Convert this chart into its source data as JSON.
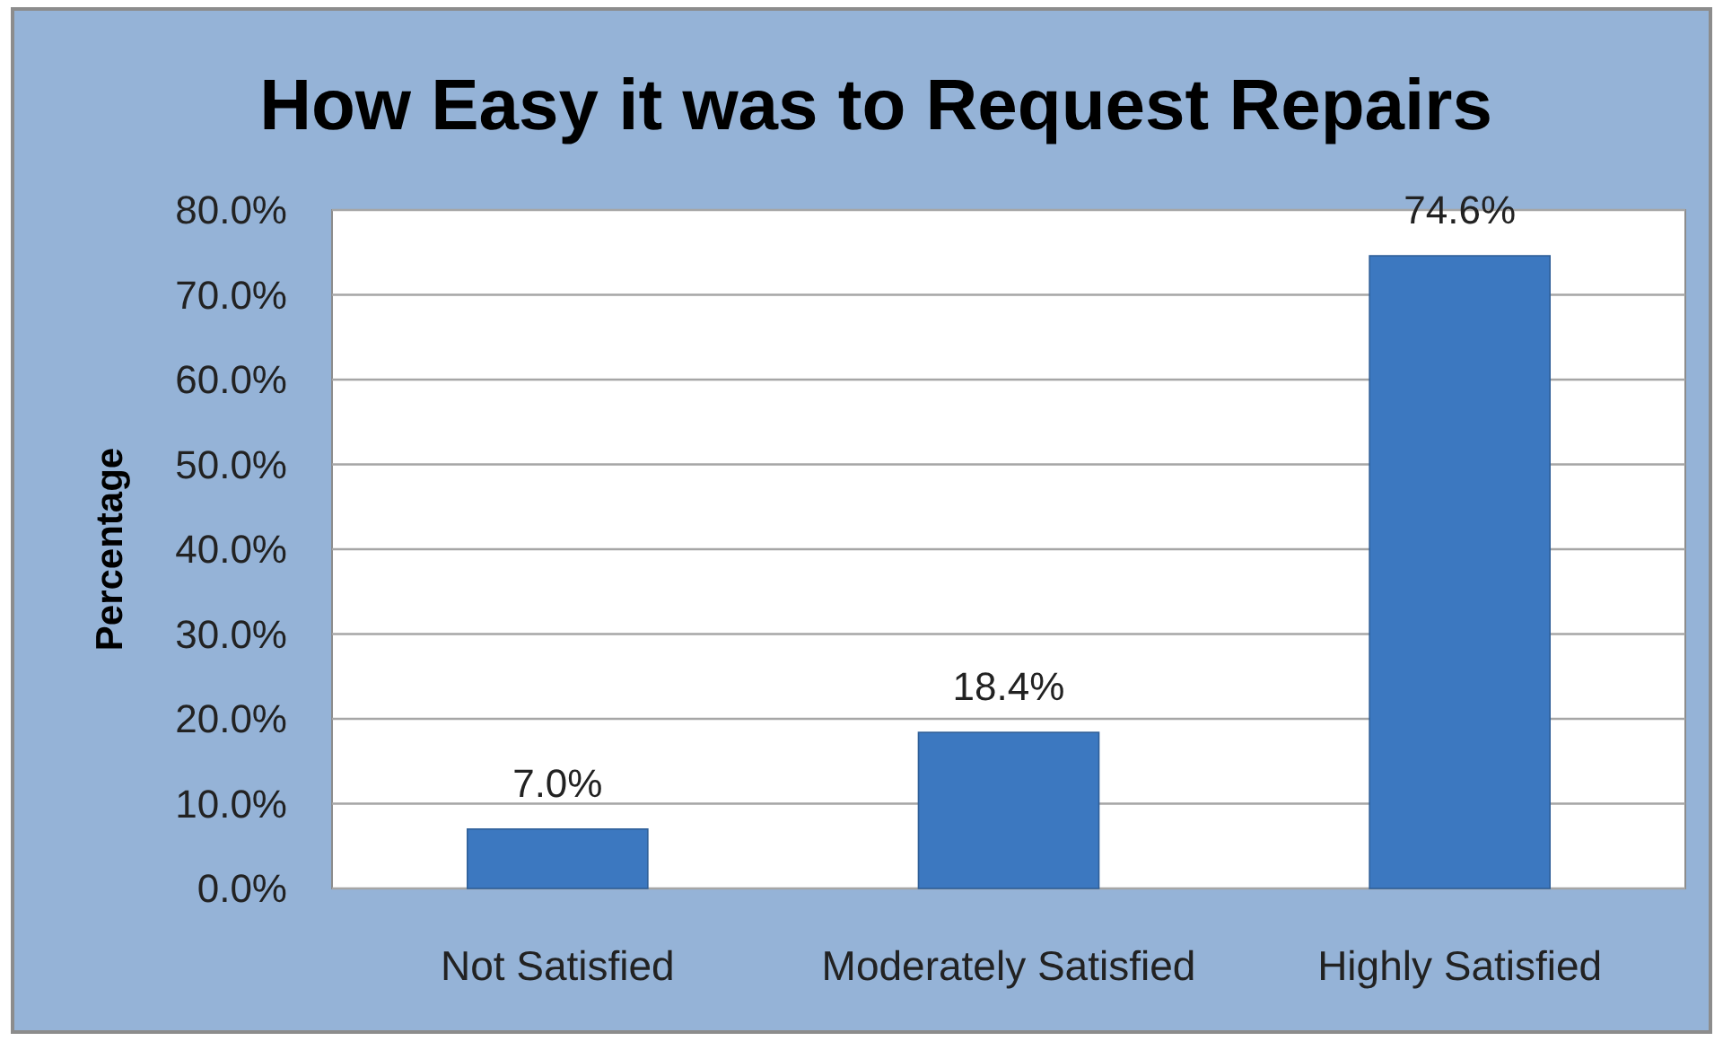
{
  "chart_data": {
    "type": "bar",
    "title": "How Easy it was to Request Repairs",
    "ylabel": "Percentage",
    "categories": [
      "Not Satisfied",
      "Moderately Satisfied",
      "Highly Satisfied"
    ],
    "values": [
      7.0,
      18.4,
      74.6
    ],
    "color": "#3c78c0",
    "value_labels": [
      "7.0%",
      "18.4%",
      "74.6%"
    ],
    "ylim": [
      0,
      80
    ],
    "yticks": [
      {
        "value": 0,
        "label": "0.0%"
      },
      {
        "value": 10,
        "label": "10.0%"
      },
      {
        "value": 20,
        "label": "20.0%"
      },
      {
        "value": 30,
        "label": "30.0%"
      },
      {
        "value": 40,
        "label": "40.0%"
      },
      {
        "value": 50,
        "label": "50.0%"
      },
      {
        "value": 60,
        "label": "60.0%"
      },
      {
        "value": 70,
        "label": "70.0%"
      },
      {
        "value": 80,
        "label": "80.0%"
      }
    ],
    "grid": "y"
  }
}
